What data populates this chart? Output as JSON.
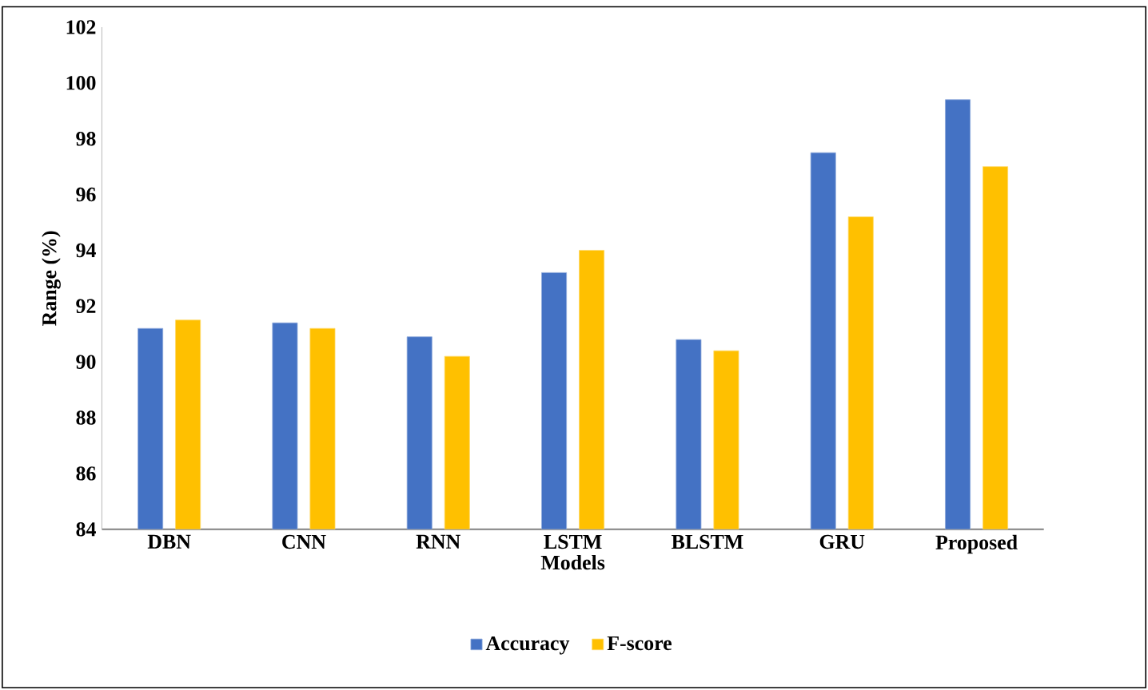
{
  "chart_data": {
    "type": "bar",
    "xlabel": "Models",
    "ylabel": "Range (%)",
    "categories": [
      "DBN",
      "CNN",
      "RNN",
      "LSTM",
      "BLSTM",
      "GRU",
      "Proposed"
    ],
    "series": [
      {
        "name": "Accuracy",
        "color": "#4472c4",
        "values": [
          91.2,
          91.4,
          90.9,
          93.2,
          90.8,
          97.5,
          99.4
        ]
      },
      {
        "name": "F-score",
        "color": "#ffc000",
        "values": [
          91.5,
          91.2,
          90.2,
          94.0,
          90.4,
          95.2,
          97.0
        ]
      }
    ],
    "ylim": [
      84,
      102
    ],
    "yticks": [
      84,
      86,
      88,
      90,
      92,
      94,
      96,
      98,
      100,
      102
    ],
    "grid": false,
    "legend": "bottom"
  }
}
